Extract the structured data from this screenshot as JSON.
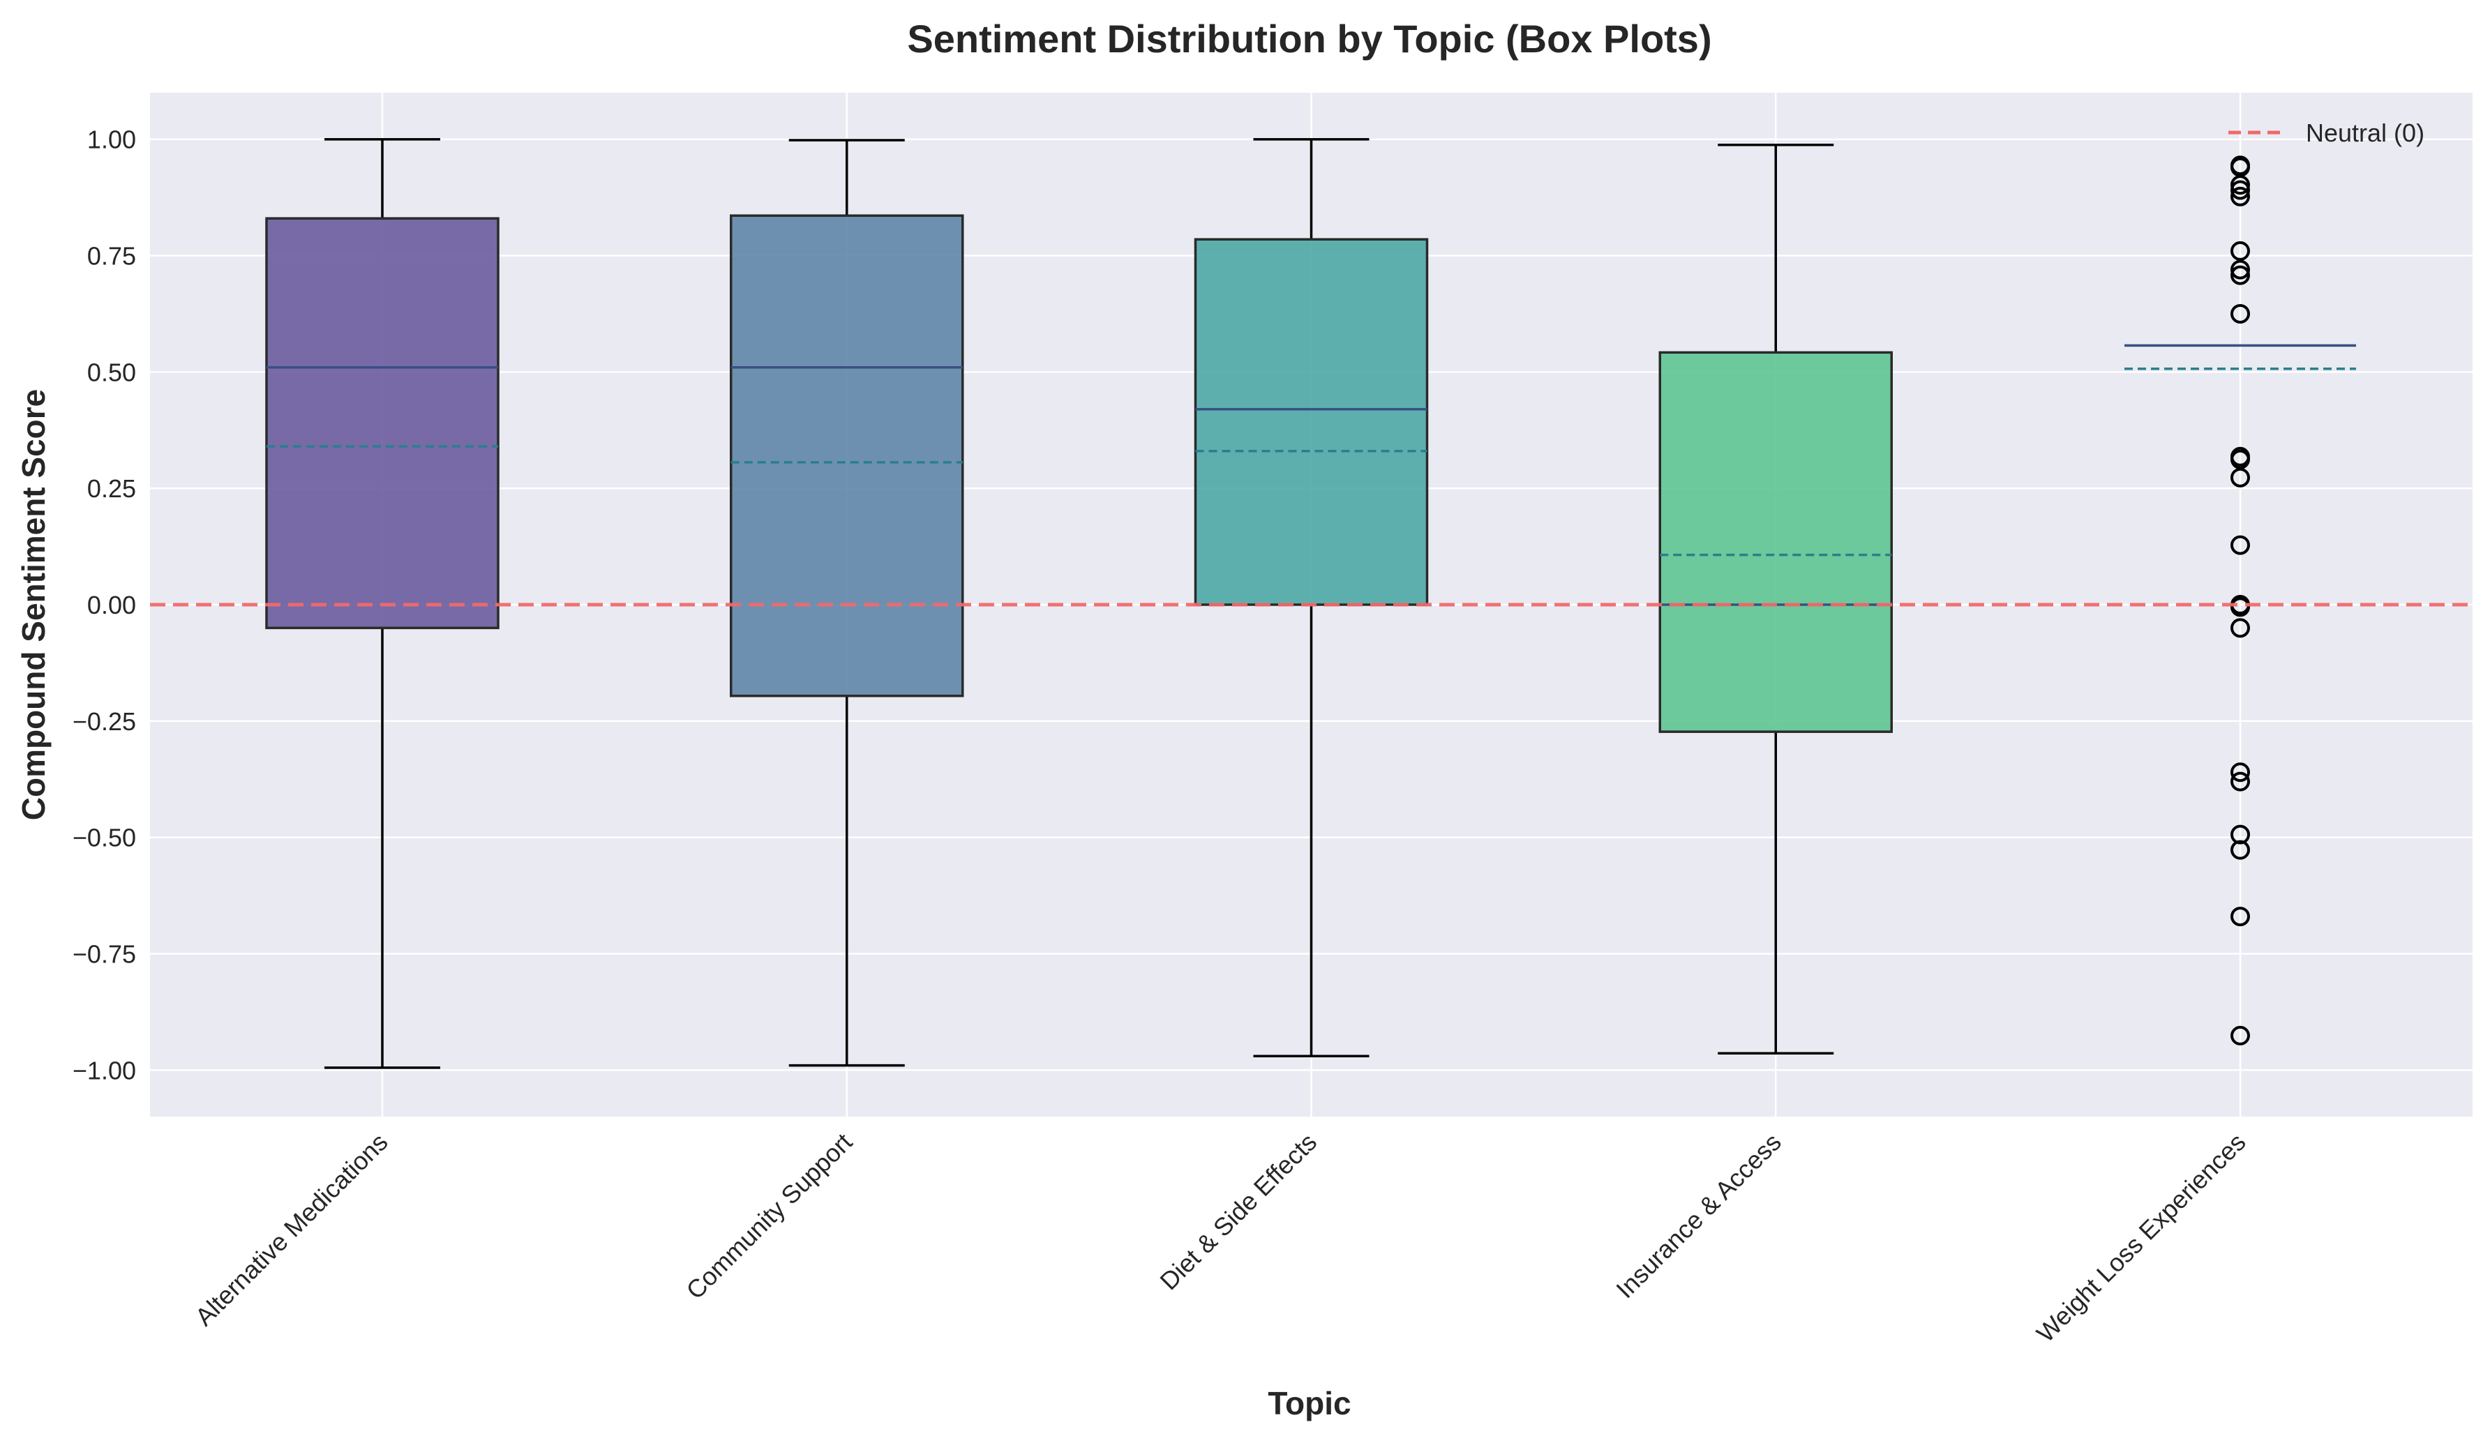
{
  "chart_data": {
    "type": "box",
    "title": "Sentiment Distribution by Topic (Box Plots)",
    "xlabel": "Topic",
    "ylabel": "Compound Sentiment Score",
    "ylim": [
      -1.1,
      1.1
    ],
    "yticks": [
      -1.0,
      -0.75,
      -0.5,
      -0.25,
      0.0,
      0.25,
      0.5,
      0.75,
      1.0
    ],
    "ytick_labels": [
      "−1.00",
      "−0.75",
      "−0.50",
      "−0.25",
      "0.00",
      "0.25",
      "0.50",
      "0.75",
      "1.00"
    ],
    "grid": true,
    "legend_position": "top-right",
    "reference_line": {
      "label": "Neutral (0)",
      "y": 0.0,
      "color": "#f0696b",
      "style": "dashed"
    },
    "median_line_color": "#3a4f86",
    "mean_line_color": "#2a7f8e",
    "categories": [
      "Alternative Medications",
      "Community Support",
      "Diet & Side Effects",
      "Insurance & Access",
      "Weight Loss Experiences"
    ],
    "boxes": [
      {
        "name": "Alternative Medications",
        "color": "#6a5c9e",
        "whislo": -0.995,
        "q1": -0.05,
        "median": 0.51,
        "mean": 0.34,
        "q3": 0.83,
        "whishi": 1.0,
        "fliers": []
      },
      {
        "name": "Community Support",
        "color": "#5f86a8",
        "whislo": -0.99,
        "q1": -0.196,
        "median": 0.51,
        "mean": 0.306,
        "q3": 0.836,
        "whishi": 0.998,
        "fliers": []
      },
      {
        "name": "Diet & Side Effects",
        "color": "#4ea8a6",
        "whislo": -0.97,
        "q1": 0.0,
        "median": 0.42,
        "mean": 0.33,
        "q3": 0.785,
        "whishi": 1.0,
        "fliers": []
      },
      {
        "name": "Insurance & Access",
        "color": "#5ec591",
        "whislo": -0.964,
        "q1": -0.273,
        "median": 0.0,
        "mean": 0.107,
        "q3": 0.542,
        "whishi": 0.988,
        "fliers": []
      },
      {
        "name": "Weight Loss Experiences",
        "color": "#7fd080",
        "whislo": 0.557,
        "q1": 0.557,
        "median": 0.557,
        "mean": 0.507,
        "q3": 0.557,
        "whishi": 0.557,
        "fliers": [
          0.944,
          0.94,
          0.902,
          0.891,
          0.877,
          0.76,
          0.72,
          0.708,
          0.625,
          0.318,
          0.312,
          0.273,
          0.128,
          0.0,
          -0.005,
          -0.05,
          -0.36,
          -0.38,
          -0.494,
          -0.527,
          -0.67,
          -0.926
        ]
      }
    ]
  }
}
